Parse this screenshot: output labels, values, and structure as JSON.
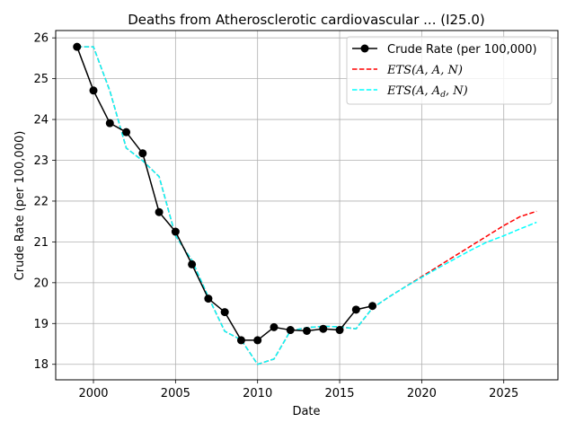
{
  "chart_data": {
    "type": "line",
    "title": "Deaths from Atherosclerotic cardiovascular ... (I25.0)",
    "xlabel": "Date",
    "ylabel": "Crude Rate (per 100,000)",
    "xlim": [
      1997.7,
      2028.3
    ],
    "ylim": [
      17.62,
      26.18
    ],
    "xticks": [
      2000,
      2005,
      2010,
      2015,
      2020,
      2025
    ],
    "yticks": [
      18,
      19,
      20,
      21,
      22,
      23,
      24,
      25,
      26
    ],
    "grid": true,
    "legend_position": "top-right",
    "series": [
      {
        "name": "Crude Rate (per 100,000)",
        "color": "#000000",
        "style": "solid-marker",
        "x": [
          1999,
          2000,
          2001,
          2002,
          2003,
          2004,
          2005,
          2006,
          2007,
          2008,
          2009,
          2010,
          2011,
          2012,
          2013,
          2014,
          2015,
          2016,
          2017
        ],
        "y": [
          25.78,
          24.71,
          23.91,
          23.69,
          23.17,
          21.73,
          21.25,
          20.45,
          19.61,
          19.28,
          18.59,
          18.59,
          18.91,
          18.84,
          18.82,
          18.87,
          18.84,
          19.34,
          19.43
        ]
      },
      {
        "name": "ETS(A, A, N)",
        "color": "#ff0000",
        "style": "dashed",
        "x": [
          1999,
          2000,
          2001,
          2002,
          2003,
          2004,
          2005,
          2006,
          2007,
          2008,
          2009,
          2010,
          2011,
          2012,
          2013,
          2014,
          2015,
          2016,
          2017,
          2018,
          2019,
          2020,
          2021,
          2022,
          2023,
          2024,
          2025,
          2026,
          2027
        ],
        "y": [
          25.78,
          25.78,
          24.7,
          23.3,
          22.99,
          22.6,
          21.15,
          20.55,
          19.65,
          18.81,
          18.6,
          18.0,
          18.13,
          18.82,
          18.9,
          18.93,
          18.92,
          18.87,
          19.38,
          19.65,
          19.9,
          20.15,
          20.4,
          20.65,
          20.9,
          21.15,
          21.4,
          21.62,
          21.75
        ]
      },
      {
        "name": "ETS(A, Ad, N)",
        "color": "#00ffff",
        "style": "dashed",
        "x": [
          1999,
          2000,
          2001,
          2002,
          2003,
          2004,
          2005,
          2006,
          2007,
          2008,
          2009,
          2010,
          2011,
          2012,
          2013,
          2014,
          2015,
          2016,
          2017,
          2018,
          2019,
          2020,
          2021,
          2022,
          2023,
          2024,
          2025,
          2026,
          2027
        ],
        "y": [
          25.78,
          25.78,
          24.7,
          23.3,
          22.99,
          22.6,
          21.15,
          20.55,
          19.65,
          18.81,
          18.6,
          18.0,
          18.13,
          18.82,
          18.9,
          18.93,
          18.92,
          18.87,
          19.38,
          19.65,
          19.9,
          20.13,
          20.36,
          20.58,
          20.8,
          21.0,
          21.15,
          21.32,
          21.48
        ]
      }
    ]
  },
  "legend": {
    "crude": "Crude Rate (per 100,000)",
    "ets_aan_prefix": "ETS",
    "ets_aan_args": "(A, A, N)",
    "ets_aadn_prefix": "ETS",
    "ets_aadn_args_a": "(A, A",
    "ets_aadn_sub": "d",
    "ets_aadn_args_end": ", N)"
  }
}
